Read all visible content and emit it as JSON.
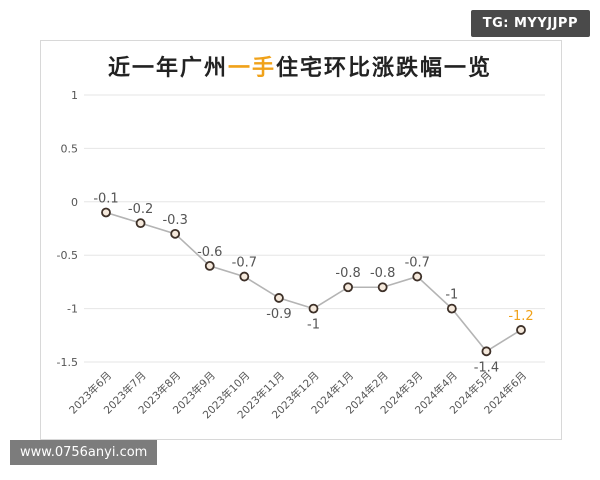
{
  "watermark_top": "TG: MYYJJPP",
  "watermark_bottom": "www.0756anyi.com",
  "colors": {
    "accent": "#f0a21a",
    "line": "#b4b4b4",
    "marker_fill": "#f5e9dc",
    "marker_stroke": "#3d3028",
    "grid": "#e6e6e6"
  },
  "chart_data": {
    "type": "line",
    "title_parts": [
      "近一年广州",
      "一手",
      "住宅环比涨跌幅一览"
    ],
    "categories": [
      "2023年6月",
      "2023年7月",
      "2023年8月",
      "2023年9月",
      "2023年10月",
      "2023年11月",
      "2023年12月",
      "2024年1月",
      "2024年2月",
      "2024年3月",
      "2024年4月",
      "2024年5月",
      "2024年6月"
    ],
    "values": [
      -0.1,
      -0.2,
      -0.3,
      -0.6,
      -0.7,
      -0.9,
      -1,
      -0.8,
      -0.8,
      -0.7,
      -1,
      -1.4,
      -1.2
    ],
    "value_labels": [
      "-0.1",
      "-0.2",
      "-0.3",
      "-0.6",
      "-0.7",
      "-0.9",
      "-1",
      "-0.8",
      "-0.8",
      "-0.7",
      "-1",
      "-1.4",
      "-1.2"
    ],
    "y_ticks": [
      1,
      0.5,
      0,
      -0.5,
      -1,
      -1.5
    ],
    "y_tick_labels": [
      "1",
      "0.5",
      "0",
      "-0.5",
      "-1",
      "-1.5"
    ],
    "ylim": [
      -1.5,
      1
    ],
    "grid": true,
    "xlabel": "",
    "ylabel": ""
  }
}
